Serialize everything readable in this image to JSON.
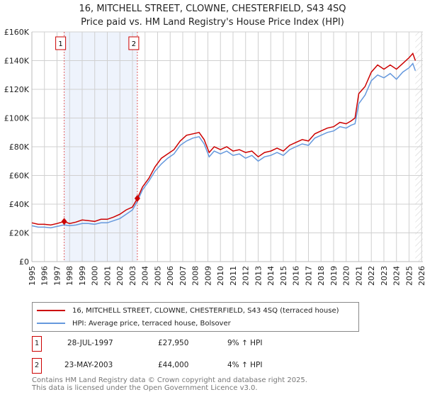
{
  "title": "16, MITCHELL STREET, CLOWNE, CHESTERFIELD, S43 4SQ",
  "subtitle": "Price paid vs. HM Land Registry's House Price Index (HPI)",
  "chart_data": {
    "type": "line",
    "title": "16, MITCHELL STREET, CLOWNE, CHESTERFIELD, S43 4SQ",
    "subtitle": "Price paid vs. HM Land Registry's House Price Index (HPI)",
    "xlim": [
      1995,
      2026
    ],
    "ylim": [
      0,
      160000
    ],
    "x_ticks": [
      "1995",
      "1996",
      "1997",
      "1998",
      "1999",
      "2000",
      "2001",
      "2002",
      "2003",
      "2004",
      "2005",
      "2006",
      "2007",
      "2008",
      "2009",
      "2010",
      "2011",
      "2012",
      "2013",
      "2014",
      "2015",
      "2016",
      "2017",
      "2018",
      "2019",
      "2020",
      "2021",
      "2022",
      "2023",
      "2024",
      "2025",
      "2026"
    ],
    "y_ticks": [
      {
        "v": 0,
        "label": "£0"
      },
      {
        "v": 20000,
        "label": "£20K"
      },
      {
        "v": 40000,
        "label": "£40K"
      },
      {
        "v": 60000,
        "label": "£60K"
      },
      {
        "v": 80000,
        "label": "£80K"
      },
      {
        "v": 100000,
        "label": "£100K"
      },
      {
        "v": 120000,
        "label": "£120K"
      },
      {
        "v": 140000,
        "label": "£140K"
      },
      {
        "v": 160000,
        "label": "£160K"
      }
    ],
    "grid": true,
    "series": [
      {
        "name": "16, MITCHELL STREET, CLOWNE, CHESTERFIELD, S43 4SQ (terraced house)",
        "color": "#cc0000",
        "x": [
          1995,
          1995.5,
          1996,
          1996.5,
          1997,
          1997.57,
          1998,
          1998.5,
          1999,
          1999.5,
          2000,
          2000.5,
          2001,
          2001.5,
          2002,
          2002.5,
          2003,
          2003.39,
          2003.8,
          2004.3,
          2004.8,
          2005.3,
          2005.8,
          2006.3,
          2006.8,
          2007.3,
          2007.8,
          2008.3,
          2008.7,
          2009.1,
          2009.5,
          2010,
          2010.5,
          2011,
          2011.5,
          2012,
          2012.5,
          2013,
          2013.5,
          2014,
          2014.5,
          2015,
          2015.5,
          2016,
          2016.5,
          2017,
          2017.5,
          2018,
          2018.5,
          2019,
          2019.5,
          2020,
          2020.4,
          2020.7,
          2021,
          2021.5,
          2022,
          2022.5,
          2023,
          2023.5,
          2024,
          2024.5,
          2025,
          2025.3,
          2025.5
        ],
        "y": [
          27000,
          26000,
          26000,
          25500,
          26500,
          27950,
          26500,
          27500,
          29000,
          28500,
          28000,
          29500,
          29500,
          31000,
          33000,
          36000,
          38000,
          44000,
          52000,
          58000,
          66000,
          72000,
          75000,
          78000,
          84000,
          88000,
          89000,
          90000,
          85000,
          76000,
          80000,
          78000,
          80000,
          77000,
          78000,
          76000,
          77000,
          73000,
          76000,
          77000,
          79000,
          77000,
          81000,
          83000,
          85000,
          84000,
          89000,
          91000,
          93000,
          94000,
          97000,
          96000,
          98000,
          100000,
          117000,
          122000,
          132000,
          137000,
          134000,
          137000,
          134000,
          138000,
          142000,
          145000,
          140000
        ]
      },
      {
        "name": "HPI: Average price, terraced house, Bolsover",
        "color": "#6699dd",
        "x": [
          1995,
          1995.5,
          1996,
          1996.5,
          1997,
          1997.57,
          1998,
          1998.5,
          1999,
          1999.5,
          2000,
          2000.5,
          2001,
          2001.5,
          2002,
          2002.5,
          2003,
          2003.39,
          2003.8,
          2004.3,
          2004.8,
          2005.3,
          2005.8,
          2006.3,
          2006.8,
          2007.3,
          2007.8,
          2008.3,
          2008.7,
          2009.1,
          2009.5,
          2010,
          2010.5,
          2011,
          2011.5,
          2012,
          2012.5,
          2013,
          2013.5,
          2014,
          2014.5,
          2015,
          2015.5,
          2016,
          2016.5,
          2017,
          2017.5,
          2018,
          2018.5,
          2019,
          2019.5,
          2020,
          2020.4,
          2020.7,
          2021,
          2021.5,
          2022,
          2022.5,
          2023,
          2023.5,
          2024,
          2024.5,
          2025,
          2025.3,
          2025.5
        ],
        "y": [
          25000,
          24000,
          24000,
          23500,
          24500,
          25600,
          25000,
          25500,
          26500,
          26500,
          26000,
          27000,
          27000,
          28500,
          30000,
          33000,
          36000,
          42000,
          50000,
          56000,
          63000,
          68000,
          72000,
          75000,
          81000,
          84000,
          86000,
          87000,
          82000,
          73000,
          77000,
          75000,
          77000,
          74000,
          75000,
          72000,
          74000,
          70000,
          73000,
          74000,
          76000,
          74000,
          78000,
          80000,
          82000,
          81000,
          86000,
          88000,
          90000,
          91000,
          94000,
          93000,
          95000,
          96000,
          110000,
          116000,
          126000,
          130000,
          128000,
          131000,
          127000,
          132000,
          135000,
          138000,
          133000
        ]
      }
    ],
    "sales": [
      {
        "num": "1",
        "x": 1997.57,
        "date": "28-JUL-1997",
        "price": "£27,950",
        "value": 27950,
        "hpi": "9% ↑ HPI"
      },
      {
        "num": "2",
        "x": 2003.39,
        "date": "23-MAY-2003",
        "price": "£44,000",
        "value": 44000,
        "hpi": "4% ↑ HPI"
      }
    ],
    "legend_placement": "below"
  },
  "footer": {
    "line1": "Contains HM Land Registry data © Crown copyright and database right 2025.",
    "line2": "This data is licensed under the Open Government Licence v3.0."
  }
}
